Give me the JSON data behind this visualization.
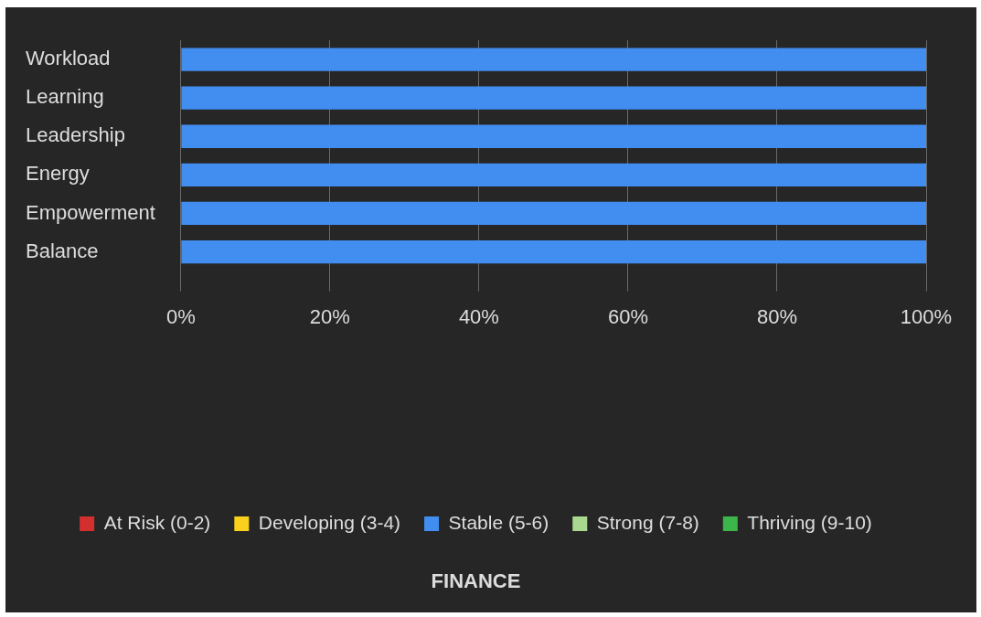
{
  "chart_data": {
    "type": "bar",
    "orientation": "horizontal",
    "stacked": true,
    "title": "FINANCE",
    "categories": [
      "Workload",
      "Learning",
      "Leadership",
      "Energy",
      "Empowerment",
      "Balance"
    ],
    "series": [
      {
        "name": "At Risk (0-2)",
        "color": "#d32f2f",
        "values": [
          0,
          0,
          0,
          0,
          0,
          0
        ]
      },
      {
        "name": "Developing (3-4)",
        "color": "#f9d01c",
        "values": [
          0,
          0,
          0,
          0,
          0,
          0
        ]
      },
      {
        "name": "Stable (5-6)",
        "color": "#418ef0",
        "values": [
          100,
          100,
          100,
          100,
          100,
          100
        ]
      },
      {
        "name": "Strong (7-8)",
        "color": "#a8d98f",
        "values": [
          0,
          0,
          0,
          0,
          0,
          0
        ]
      },
      {
        "name": "Thriving (9-10)",
        "color": "#3cb54a",
        "values": [
          0,
          0,
          0,
          0,
          0,
          0
        ]
      }
    ],
    "xlim": [
      0,
      100
    ],
    "xticks": [
      {
        "value": 0,
        "label": "0%"
      },
      {
        "value": 20,
        "label": "20%"
      },
      {
        "value": 40,
        "label": "40%"
      },
      {
        "value": 60,
        "label": "60%"
      },
      {
        "value": 80,
        "label": "80%"
      },
      {
        "value": 100,
        "label": "100%"
      }
    ],
    "grid": "x",
    "legend": "bottom"
  }
}
